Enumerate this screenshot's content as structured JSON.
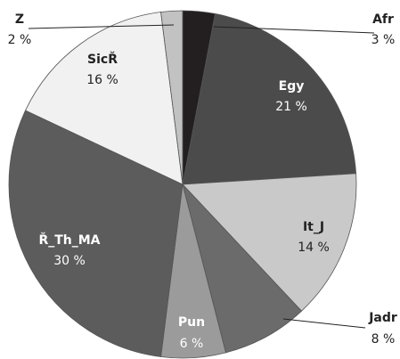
{
  "chart_data": {
    "type": "pie",
    "categories": [
      "Afr",
      "Egy",
      "It_J",
      "Jadr",
      "Pun",
      "Ř_Th_MA",
      "SicŘ",
      "Z"
    ],
    "values": [
      3,
      21,
      14,
      8,
      6,
      30,
      16,
      2
    ],
    "value_labels": [
      "3 %",
      "21 %",
      "14 %",
      "8 %",
      "6 %",
      "30 %",
      "16 %",
      "2 %"
    ],
    "colors": [
      "#231f20",
      "#4b4b4b",
      "#c9c9c9",
      "#6b6b6b",
      "#9b9b9b",
      "#5c5c5c",
      "#f1f1f1",
      "#c2c2c2"
    ]
  }
}
